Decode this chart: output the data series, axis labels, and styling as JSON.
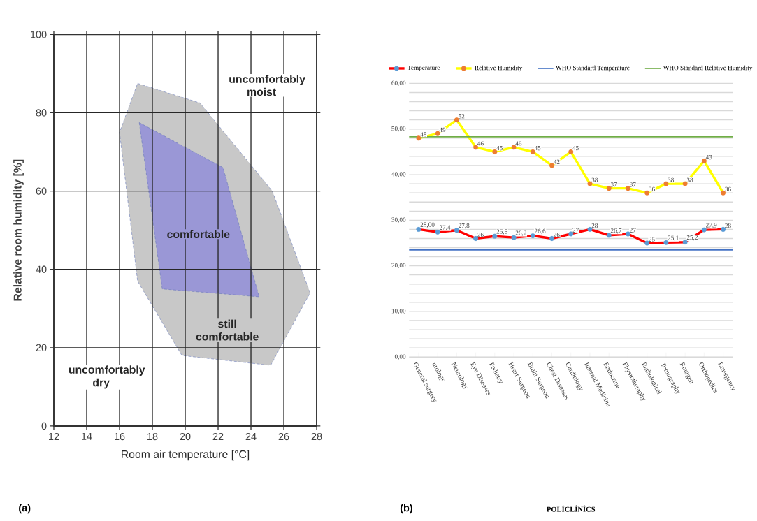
{
  "chart_data": [
    {
      "type": "area",
      "xlabel": "Room air temperature    [°C]",
      "ylabel": "Relative room humidity    [%]",
      "xlim": [
        12,
        28
      ],
      "ylim": [
        0,
        100
      ],
      "xticks": [
        12,
        14,
        16,
        18,
        20,
        22,
        24,
        26,
        28
      ],
      "yticks": [
        0,
        20,
        40,
        60,
        80,
        100
      ],
      "grid": true,
      "series": [
        {
          "color": "#c8c8c8",
          "x": [
            17.1,
            20.9,
            25.3,
            27.6,
            25.2,
            19.8,
            17.1,
            16.0
          ],
          "values": [
            87.5,
            82.5,
            60,
            34,
            15.5,
            18,
            37,
            75
          ]
        },
        {
          "color": "#9a97d6",
          "x": [
            17.2,
            22.3,
            24.5,
            18.6
          ],
          "values": [
            77.5,
            66,
            33,
            35
          ]
        }
      ],
      "annotations": [
        "uncomfortably moist",
        "comfortable",
        "still comfortable",
        "uncomfortably dry",
        "(a)"
      ]
    },
    {
      "type": "line",
      "xlabel": "POLİCLİNİCS",
      "categories": [
        "General surgery",
        "urology",
        "Neurology",
        "Eye Diseases",
        "Pediatry",
        "Heart Surgeon",
        "Brain Surgeon",
        "Chest Diseases",
        "Cardiology",
        "Internal Medicine",
        "Endocrine",
        "Physiotheraphy",
        "Radiological",
        "Tomography",
        "Rontgen",
        "Orthopedics",
        "Emergency"
      ],
      "series": [
        {
          "name": "Temperature",
          "color": "#ff0000",
          "values": [
            28.0,
            27.4,
            27.8,
            26,
            26.5,
            26.2,
            26.6,
            26,
            27,
            28,
            26.7,
            27,
            25,
            25.1,
            25.2,
            27.9,
            28
          ],
          "value_labels": [
            "28,00",
            "27,4",
            "27,8",
            "26",
            "26,5",
            "26,2",
            "26,6",
            "26",
            "27",
            "28",
            "26,7",
            "27",
            "25",
            "25,1",
            "25,2",
            "27,9",
            "28"
          ]
        },
        {
          "name": "Relative Humidity",
          "color": "#ffff00",
          "values": [
            48,
            49,
            52,
            46,
            45,
            46,
            45,
            42,
            45,
            38,
            37,
            37,
            36,
            38,
            38,
            43,
            36
          ],
          "value_labels": [
            "48",
            "49",
            "52",
            "46",
            "45",
            "46",
            "45",
            "42",
            "45",
            "38",
            "37",
            "37",
            "36",
            "38",
            "38",
            "43",
            "36"
          ]
        }
      ],
      "ref_lines": [
        {
          "axis": "y",
          "value": 23.5,
          "label": "WHO Standard Temperature",
          "color": "#4472c4"
        },
        {
          "axis": "y",
          "value": 48.3,
          "label": "WHO Standard  Relative Humidity",
          "color": "#70ad47"
        }
      ],
      "ylim": [
        0,
        60
      ],
      "yticks": [
        {
          "value": 0,
          "label": "0,00"
        },
        {
          "value": 2,
          "label": null
        },
        {
          "value": 4,
          "label": null
        },
        {
          "value": 6,
          "label": null
        },
        {
          "value": 8,
          "label": null
        },
        {
          "value": 10,
          "label": "10,00"
        },
        {
          "value": 12,
          "label": null
        },
        {
          "value": 14,
          "label": null
        },
        {
          "value": 16,
          "label": null
        },
        {
          "value": 18,
          "label": null
        },
        {
          "value": 20,
          "label": "20,00"
        },
        {
          "value": 22,
          "label": null
        },
        {
          "value": 24,
          "label": null
        },
        {
          "value": 26,
          "label": null
        },
        {
          "value": 28,
          "label": null
        },
        {
          "value": 30,
          "label": "30,00"
        },
        {
          "value": 32,
          "label": null
        },
        {
          "value": 34,
          "label": null
        },
        {
          "value": 36,
          "label": null
        },
        {
          "value": 38,
          "label": null
        },
        {
          "value": 40,
          "label": "40,00"
        },
        {
          "value": 42,
          "label": null
        },
        {
          "value": 44,
          "label": null
        },
        {
          "value": 46,
          "label": null
        },
        {
          "value": 48,
          "label": null
        },
        {
          "value": 50,
          "label": "50,00"
        },
        {
          "value": 52,
          "label": null
        },
        {
          "value": 54,
          "label": null
        },
        {
          "value": 56,
          "label": null
        },
        {
          "value": 58,
          "label": null
        },
        {
          "value": 60,
          "label": "60,00"
        }
      ],
      "grid": "y",
      "legend": "top",
      "marker": "circle",
      "annotations": [
        "(b)"
      ]
    }
  ]
}
